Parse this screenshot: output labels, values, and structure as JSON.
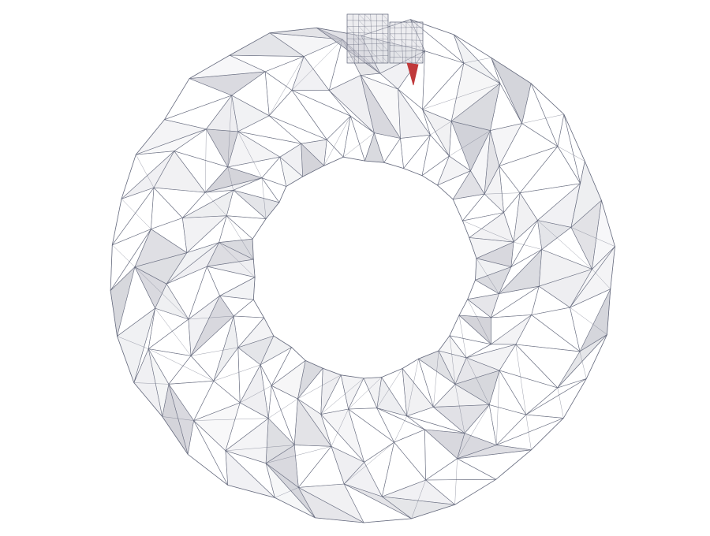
{
  "scene": {
    "object": "ring-mesh",
    "render_style": "wireframe",
    "colors": {
      "background": "#ffffff",
      "edge": "#5f6478",
      "face_fill": "#d6d7de",
      "face_fill_dark": "#b9bac4",
      "highlight": "#c0393b"
    }
  }
}
